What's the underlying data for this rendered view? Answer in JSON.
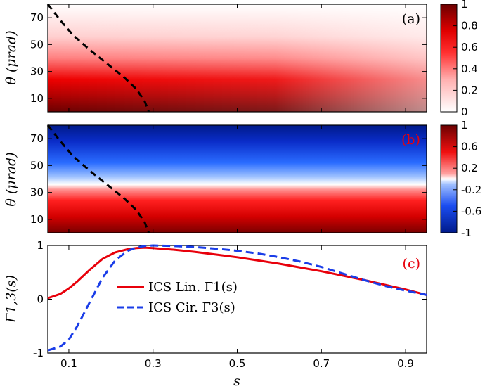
{
  "chart_data": [
    {
      "type": "heatmap",
      "panel_label": "(a)",
      "panel_label_color": "#000000",
      "ylabel": "θ (μrad)",
      "x_range": [
        0.05,
        0.95
      ],
      "y_range": [
        0,
        80
      ],
      "y_ticks": [
        "10",
        "30",
        "50",
        "70"
      ],
      "colormap": "white-red",
      "colorbar_range": [
        0,
        1
      ],
      "colorbar_ticks": [
        "0",
        "0.2",
        "0.4",
        "0.6",
        "0.8",
        "1"
      ],
      "boundary_curve": {
        "x": [
          0.05,
          0.08,
          0.11,
          0.15,
          0.19,
          0.23,
          0.26,
          0.28,
          0.29
        ],
        "y": [
          80,
          68,
          57,
          46,
          36,
          26,
          17,
          8,
          0
        ]
      }
    },
    {
      "type": "heatmap",
      "panel_label": "(b)",
      "panel_label_color": "#e8000b",
      "ylabel": "θ (μrad)",
      "x_range": [
        0.05,
        0.95
      ],
      "y_range": [
        0,
        80
      ],
      "y_ticks": [
        "10",
        "30",
        "50",
        "70"
      ],
      "colormap": "blue-white-red",
      "colorbar_range": [
        -1,
        1
      ],
      "colorbar_ticks": [
        "1",
        "0.6",
        "0.2",
        "-0.2",
        "-0.6",
        "-1"
      ],
      "boundary_curve": {
        "x": [
          0.05,
          0.08,
          0.11,
          0.15,
          0.19,
          0.23,
          0.26,
          0.28,
          0.29
        ],
        "y": [
          80,
          68,
          57,
          46,
          36,
          26,
          17,
          8,
          0
        ]
      }
    },
    {
      "type": "line",
      "panel_label": "(c)",
      "panel_label_color": "#e8000b",
      "xlabel": "s",
      "ylabel": "Γ1,3(s)",
      "x_range": [
        0.05,
        0.95
      ],
      "y_range": [
        -1,
        1
      ],
      "x_ticks": [
        "0.1",
        "0.3",
        "0.5",
        "0.7",
        "0.9"
      ],
      "y_ticks": [
        "-1",
        "0",
        "1"
      ],
      "series": [
        {
          "name": "ICS Lin. Γ1(s)",
          "color": "#e8000b",
          "dash": "solid",
          "x": [
            0.05,
            0.08,
            0.1,
            0.12,
            0.15,
            0.18,
            0.21,
            0.24,
            0.26,
            0.28,
            0.3,
            0.35,
            0.4,
            0.45,
            0.5,
            0.55,
            0.6,
            0.65,
            0.7,
            0.75,
            0.8,
            0.85,
            0.9,
            0.95
          ],
          "y": [
            0.02,
            0.1,
            0.2,
            0.33,
            0.55,
            0.75,
            0.87,
            0.93,
            0.95,
            0.96,
            0.95,
            0.92,
            0.88,
            0.83,
            0.78,
            0.72,
            0.66,
            0.59,
            0.52,
            0.44,
            0.36,
            0.27,
            0.18,
            0.08
          ]
        },
        {
          "name": "ICS Cir. Γ3(s)",
          "color": "#1a3de8",
          "dash": "dashed",
          "x": [
            0.05,
            0.08,
            0.1,
            0.12,
            0.15,
            0.18,
            0.21,
            0.24,
            0.26,
            0.28,
            0.3,
            0.35,
            0.4,
            0.45,
            0.5,
            0.55,
            0.6,
            0.65,
            0.7,
            0.75,
            0.8,
            0.85,
            0.9,
            0.95
          ],
          "y": [
            -0.95,
            -0.88,
            -0.75,
            -0.5,
            -0.05,
            0.4,
            0.72,
            0.9,
            0.96,
            0.99,
            1.0,
            0.99,
            0.97,
            0.94,
            0.9,
            0.85,
            0.78,
            0.7,
            0.6,
            0.48,
            0.36,
            0.25,
            0.16,
            0.08
          ]
        }
      ]
    }
  ]
}
